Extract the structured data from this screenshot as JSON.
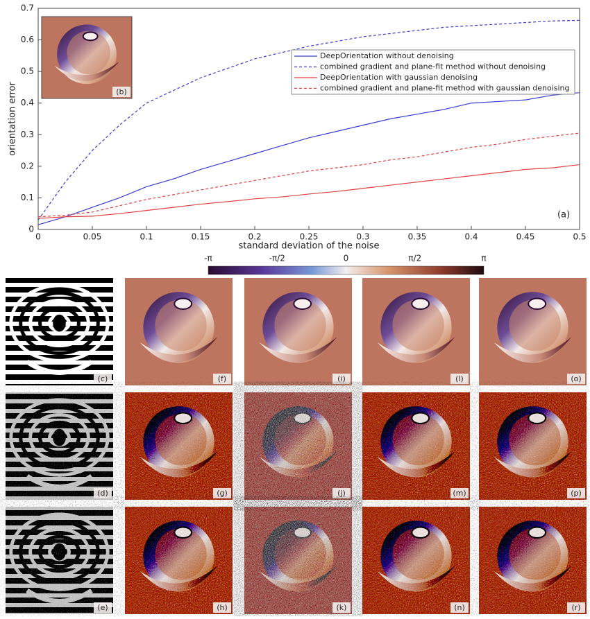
{
  "chart_data": {
    "type": "line",
    "xlabel": "standard deviation of the noise",
    "ylabel": "orientation error",
    "annotation": "(a)",
    "x": [
      0,
      0.025,
      0.05,
      0.075,
      0.1,
      0.125,
      0.15,
      0.175,
      0.2,
      0.225,
      0.25,
      0.275,
      0.3,
      0.325,
      0.35,
      0.375,
      0.4,
      0.425,
      0.45,
      0.475,
      0.5
    ],
    "xlim": [
      0,
      0.5
    ],
    "xticks": [
      0,
      0.05,
      0.1,
      0.15,
      0.2,
      0.25,
      0.3,
      0.35,
      0.4,
      0.45,
      0.5
    ],
    "ylim": [
      0,
      0.7
    ],
    "yticks": [
      0,
      0.1,
      0.2,
      0.3,
      0.4,
      0.5,
      0.6,
      0.7
    ],
    "legend": "upper right",
    "series": [
      {
        "name": "DeepOrientation without denoising",
        "color": "#3a3ad0",
        "dashed": false,
        "values": [
          0.015,
          0.04,
          0.07,
          0.1,
          0.135,
          0.16,
          0.19,
          0.215,
          0.24,
          0.265,
          0.29,
          0.31,
          0.33,
          0.35,
          0.365,
          0.38,
          0.4,
          0.405,
          0.41,
          0.425,
          0.433
        ]
      },
      {
        "name": "combined gradient and plane-fit method without denoising",
        "color": "#3a3ad0",
        "dashed": true,
        "values": [
          0.03,
          0.15,
          0.25,
          0.33,
          0.4,
          0.44,
          0.48,
          0.51,
          0.54,
          0.56,
          0.58,
          0.595,
          0.61,
          0.62,
          0.63,
          0.64,
          0.645,
          0.65,
          0.655,
          0.66,
          0.662
        ]
      },
      {
        "name": "DeepOrientation with gaussian denoising",
        "color": "#e04040",
        "dashed": false,
        "values": [
          0.035,
          0.04,
          0.042,
          0.05,
          0.06,
          0.07,
          0.08,
          0.088,
          0.097,
          0.103,
          0.112,
          0.12,
          0.13,
          0.14,
          0.15,
          0.16,
          0.17,
          0.18,
          0.19,
          0.195,
          0.205
        ]
      },
      {
        "name": "combined gradient and plane-fit method with gaussian denoising",
        "color": "#e04040",
        "dashed": true,
        "values": [
          0.04,
          0.045,
          0.055,
          0.075,
          0.095,
          0.11,
          0.125,
          0.14,
          0.155,
          0.17,
          0.185,
          0.195,
          0.205,
          0.22,
          0.23,
          0.245,
          0.26,
          0.27,
          0.285,
          0.295,
          0.305
        ]
      }
    ]
  },
  "inset_label": "(b)",
  "colorbar": {
    "ticks": [
      "-π",
      "-π/2",
      "0",
      "π/2",
      "π"
    ]
  },
  "panels": [
    [
      "(c)",
      "(f)",
      "(i)",
      "(l)",
      "(o)"
    ],
    [
      "(d)",
      "(g)",
      "(j)",
      "(m)",
      "(p)"
    ],
    [
      "(e)",
      "(h)",
      "(k)",
      "(n)",
      "(r)"
    ]
  ]
}
